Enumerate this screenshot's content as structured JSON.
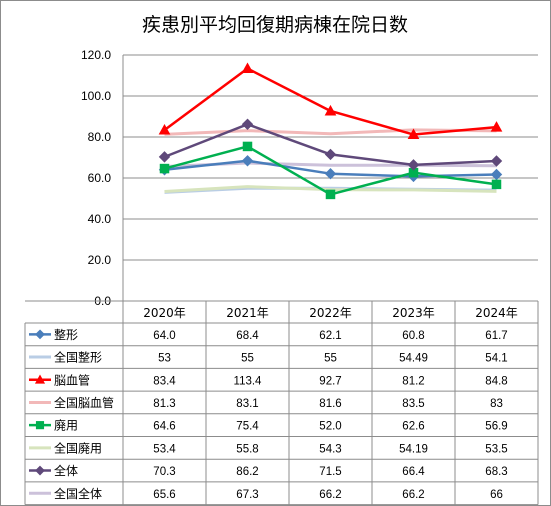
{
  "chart_data": {
    "type": "line",
    "title": "疾患別平均回復期病棟在院日数",
    "categories": [
      "2020年",
      "2021年",
      "2022年",
      "2023年",
      "2024年"
    ],
    "ylim": [
      0,
      120
    ],
    "yticks": [
      "0.0",
      "20.0",
      "40.0",
      "60.0",
      "80.0",
      "100.0",
      "120.0"
    ],
    "grid": true,
    "series": [
      {
        "name": "整形",
        "values": [
          64.0,
          68.4,
          62.1,
          60.8,
          61.7
        ],
        "labels": [
          "64.0",
          "68.4",
          "62.1",
          "60.8",
          "61.7"
        ],
        "color": "#4a7ebb",
        "marker": "diamond",
        "width": 2.5
      },
      {
        "name": "全国整形",
        "values": [
          53,
          55,
          55,
          54.49,
          54.1
        ],
        "labels": [
          "53",
          "55",
          "55",
          "54.49",
          "54.1"
        ],
        "color": "#b9cde5",
        "marker": "none",
        "width": 3
      },
      {
        "name": "脳血管",
        "values": [
          83.4,
          113.4,
          92.7,
          81.2,
          84.8
        ],
        "labels": [
          "83.4",
          "113.4",
          "92.7",
          "81.2",
          "84.8"
        ],
        "color": "#ff0000",
        "marker": "triangle",
        "width": 2.5
      },
      {
        "name": "全国脳血管",
        "values": [
          81.3,
          83.1,
          81.6,
          83.5,
          83
        ],
        "labels": [
          "81.3",
          "83.1",
          "81.6",
          "83.5",
          "83"
        ],
        "color": "#f2b8b8",
        "marker": "none",
        "width": 3
      },
      {
        "name": "廃用",
        "values": [
          64.6,
          75.4,
          52.0,
          62.6,
          56.9
        ],
        "labels": [
          "64.6",
          "75.4",
          "52.0",
          "62.6",
          "56.9"
        ],
        "color": "#00b050",
        "marker": "square",
        "width": 2.5
      },
      {
        "name": "全国廃用",
        "values": [
          53.4,
          55.8,
          54.3,
          54.19,
          53.5
        ],
        "labels": [
          "53.4",
          "55.8",
          "54.3",
          "54.19",
          "53.5"
        ],
        "color": "#d7e4bd",
        "marker": "none",
        "width": 3
      },
      {
        "name": "全体",
        "values": [
          70.3,
          86.2,
          71.5,
          66.4,
          68.3
        ],
        "labels": [
          "70.3",
          "86.2",
          "71.5",
          "66.4",
          "68.3"
        ],
        "color": "#5f497a",
        "marker": "diamond",
        "width": 2.5
      },
      {
        "name": "全国全体",
        "values": [
          65.6,
          67.3,
          66.2,
          66.2,
          66
        ],
        "labels": [
          "65.6",
          "67.3",
          "66.2",
          "66.2",
          "66"
        ],
        "color": "#ccc1da",
        "marker": "none",
        "width": 3
      }
    ]
  }
}
